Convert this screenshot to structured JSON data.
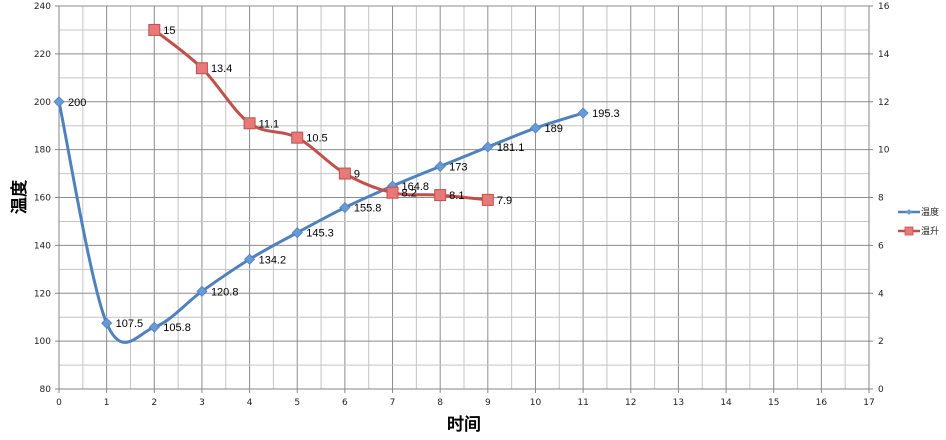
{
  "chart_data": {
    "type": "line",
    "title": "",
    "xlabel": "时间",
    "ylabel": "温度",
    "y2label": "",
    "xlim": [
      0,
      17
    ],
    "ylim": [
      80,
      240
    ],
    "y2lim": [
      0,
      16
    ],
    "x_ticks": [
      0,
      1,
      2,
      3,
      4,
      5,
      6,
      7,
      8,
      9,
      10,
      11,
      12,
      13,
      14,
      15,
      16,
      17
    ],
    "y_ticks": [
      80,
      100,
      120,
      140,
      160,
      180,
      200,
      220,
      240
    ],
    "y2_ticks": [
      0,
      2,
      4,
      6,
      8,
      10,
      12,
      14,
      16
    ],
    "grid": true,
    "legend_position": "right",
    "series": [
      {
        "name": "温度",
        "axis": "primary",
        "color": "#4F81BD",
        "marker": "diamond",
        "smooth": true,
        "x": [
          0,
          1,
          2,
          3,
          4,
          5,
          6,
          7,
          8,
          9,
          10,
          11
        ],
        "values": [
          200,
          107.5,
          105.8,
          120.8,
          134.2,
          145.3,
          155.8,
          164.8,
          173,
          181.1,
          189,
          195.3
        ],
        "labels": [
          "200",
          "107.5",
          "105.8",
          "120.8",
          "134.2",
          "145.3",
          "155.8",
          "164.8",
          "173",
          "181.1",
          "189",
          "195.3"
        ]
      },
      {
        "name": "温升",
        "axis": "secondary",
        "color": "#C0504D",
        "marker": "square",
        "smooth": true,
        "x": [
          2,
          3,
          4,
          5,
          6,
          7,
          8,
          9
        ],
        "values": [
          15,
          13.4,
          11.1,
          10.5,
          9,
          8.2,
          8.1,
          7.9
        ],
        "labels": [
          "15",
          "13.4",
          "11.1",
          "10.5",
          "9",
          "8.2",
          "8.1",
          "7.9"
        ]
      }
    ]
  }
}
